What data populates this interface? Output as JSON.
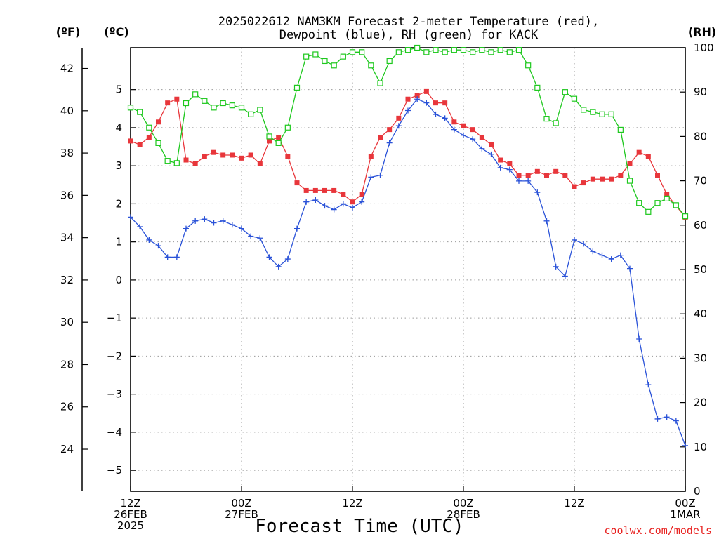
{
  "chart_data": {
    "type": "line",
    "title_line1": "2025022612 NAM3KM Forecast 2-meter Temperature (red),",
    "title_line2": "Dewpoint (blue), RH (green) for KACK",
    "left_outer_unit": "(ºF)",
    "left_inner_unit": "(ºC)",
    "right_unit": "(RH)",
    "xlabel": "Forecast Time (UTC)",
    "source": "coolwx.com/models",
    "x_range_hours": [
      0,
      60
    ],
    "celsius_range": [
      -5.55,
      6.1
    ],
    "rh_range": [
      0,
      100
    ],
    "grid": true,
    "celsius_ticks": [
      "5",
      "4",
      "3",
      "2",
      "1",
      "0",
      "−1",
      "−2",
      "−3",
      "−4",
      "−5"
    ],
    "fahrenheit_ticks": [
      "42",
      "40",
      "38",
      "36",
      "34",
      "32",
      "30",
      "28",
      "26",
      "24"
    ],
    "rh_ticks": [
      "100",
      "90",
      "80",
      "70",
      "60",
      "50",
      "40",
      "30",
      "20",
      "10",
      "0"
    ],
    "x_ticks": [
      {
        "hour": 0,
        "line1": "12Z",
        "line2": "26FEB",
        "line3": "2025"
      },
      {
        "hour": 12,
        "line1": "00Z",
        "line2": "27FEB",
        "line3": ""
      },
      {
        "hour": 24,
        "line1": "12Z",
        "line2": "",
        "line3": ""
      },
      {
        "hour": 36,
        "line1": "00Z",
        "line2": "28FEB",
        "line3": ""
      },
      {
        "hour": 48,
        "line1": "12Z",
        "line2": "",
        "line3": ""
      },
      {
        "hour": 60,
        "line1": "00Z",
        "line2": "1MAR",
        "line3": ""
      }
    ],
    "series": [
      {
        "name": "Temperature (red)",
        "axis": "celsius",
        "color": "#e8363b",
        "marker": "filled-square",
        "x": [
          0,
          1,
          2,
          3,
          4,
          5,
          6,
          7,
          8,
          9,
          10,
          11,
          12,
          13,
          14,
          15,
          16,
          17,
          18,
          19,
          20,
          21,
          22,
          23,
          24,
          25,
          26,
          27,
          28,
          29,
          30,
          31,
          32,
          33,
          34,
          35,
          36,
          37,
          38,
          39,
          40,
          41,
          42,
          43,
          44,
          45,
          46,
          47,
          48,
          49,
          50,
          51,
          52,
          53,
          54,
          55,
          56,
          57,
          58,
          59,
          60
        ],
        "values": [
          3.65,
          3.55,
          3.75,
          4.15,
          4.65,
          4.75,
          3.15,
          3.05,
          3.25,
          3.35,
          3.28,
          3.28,
          3.2,
          3.28,
          3.05,
          3.65,
          3.75,
          3.25,
          2.55,
          2.35,
          2.35,
          2.35,
          2.35,
          2.25,
          2.05,
          2.25,
          3.25,
          3.75,
          3.95,
          4.25,
          4.75,
          4.85,
          4.95,
          4.65,
          4.65,
          4.15,
          4.05,
          3.95,
          3.75,
          3.55,
          3.15,
          3.05,
          2.75,
          2.75,
          2.85,
          2.75,
          2.85,
          2.75,
          2.45,
          2.55,
          2.65,
          2.65,
          2.65,
          2.75,
          3.05,
          3.35,
          3.25,
          2.75,
          2.25,
          1.95,
          1.65
        ]
      },
      {
        "name": "Dewpoint (blue)",
        "axis": "celsius",
        "color": "#2a52d8",
        "marker": "plus",
        "x": [
          0,
          1,
          2,
          3,
          4,
          5,
          6,
          7,
          8,
          9,
          10,
          11,
          12,
          13,
          14,
          15,
          16,
          17,
          18,
          19,
          20,
          21,
          22,
          23,
          24,
          25,
          26,
          27,
          28,
          29,
          30,
          31,
          32,
          33,
          34,
          35,
          36,
          37,
          38,
          39,
          40,
          41,
          42,
          43,
          44,
          45,
          46,
          47,
          48,
          49,
          50,
          51,
          52,
          53,
          54,
          55,
          56,
          57,
          58,
          59,
          60
        ],
        "values": [
          1.65,
          1.4,
          1.05,
          0.9,
          0.6,
          0.6,
          1.35,
          1.55,
          1.6,
          1.5,
          1.55,
          1.45,
          1.35,
          1.15,
          1.1,
          0.6,
          0.35,
          0.55,
          1.35,
          2.05,
          2.1,
          1.95,
          1.85,
          2.0,
          1.9,
          2.05,
          2.7,
          2.75,
          3.6,
          4.05,
          4.45,
          4.75,
          4.65,
          4.35,
          4.25,
          3.95,
          3.8,
          3.7,
          3.45,
          3.3,
          2.95,
          2.9,
          2.6,
          2.6,
          2.3,
          1.55,
          0.35,
          0.1,
          1.05,
          0.95,
          0.75,
          0.65,
          0.55,
          0.65,
          0.3,
          -1.55,
          -2.75,
          -3.65,
          -3.6,
          -3.7,
          -4.35
        ]
      },
      {
        "name": "RH (green)",
        "axis": "rh",
        "color": "#1ec81e",
        "marker": "hollow-square",
        "x": [
          0,
          1,
          2,
          3,
          4,
          5,
          6,
          7,
          8,
          9,
          10,
          11,
          12,
          13,
          14,
          15,
          16,
          17,
          18,
          19,
          20,
          21,
          22,
          23,
          24,
          25,
          26,
          27,
          28,
          29,
          30,
          31,
          32,
          33,
          34,
          35,
          36,
          37,
          38,
          39,
          40,
          41,
          42,
          43,
          44,
          45,
          46,
          47,
          48,
          49,
          50,
          51,
          52,
          53,
          54,
          55,
          56,
          57,
          58,
          59,
          60
        ],
        "values": [
          86.5,
          85.5,
          82,
          78.5,
          74.5,
          74,
          87.5,
          89.5,
          88,
          86.5,
          87.5,
          87,
          86.5,
          85,
          86,
          80,
          78.5,
          82,
          91,
          98,
          98.5,
          97,
          96,
          98,
          99,
          99,
          96,
          92,
          97,
          99,
          99.5,
          100,
          99,
          99.5,
          99,
          99.5,
          99.5,
          99,
          99.5,
          99,
          99.5,
          99,
          99.5,
          96,
          91,
          84,
          83,
          90,
          88.5,
          86,
          85.5,
          85,
          85,
          81.5,
          70,
          65,
          63,
          65,
          66,
          64.5,
          62
        ]
      }
    ]
  }
}
